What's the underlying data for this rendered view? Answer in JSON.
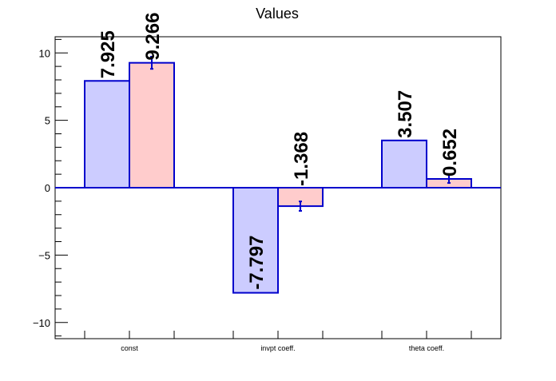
{
  "chart_data": {
    "type": "bar",
    "title": "Values",
    "xlabel": "",
    "ylabel": "",
    "categories": [
      "const",
      "invpt coeff.",
      "theta coeff."
    ],
    "ylim": [
      -11.2,
      11.2
    ],
    "yticks": [
      -10,
      -5,
      0,
      5,
      10
    ],
    "ytick_labels": [
      "−10",
      "−5",
      "0",
      "5",
      "10"
    ],
    "grid": false,
    "legend": "none",
    "series": [
      {
        "values": [
          7.925,
          -7.797,
          3.507
        ],
        "labels": [
          "7.925",
          "-7.797",
          "3.507"
        ],
        "fill": "#ccccff",
        "stroke": "#0000cc",
        "errors": [
          0,
          0,
          0
        ]
      },
      {
        "values": [
          9.266,
          -1.368,
          0.652
        ],
        "labels": [
          "9.266",
          "-1.368",
          "0.652"
        ],
        "fill": "#ffcccc",
        "stroke": "#0000cc",
        "errors": [
          0.45,
          0.35,
          0.3
        ]
      }
    ]
  }
}
